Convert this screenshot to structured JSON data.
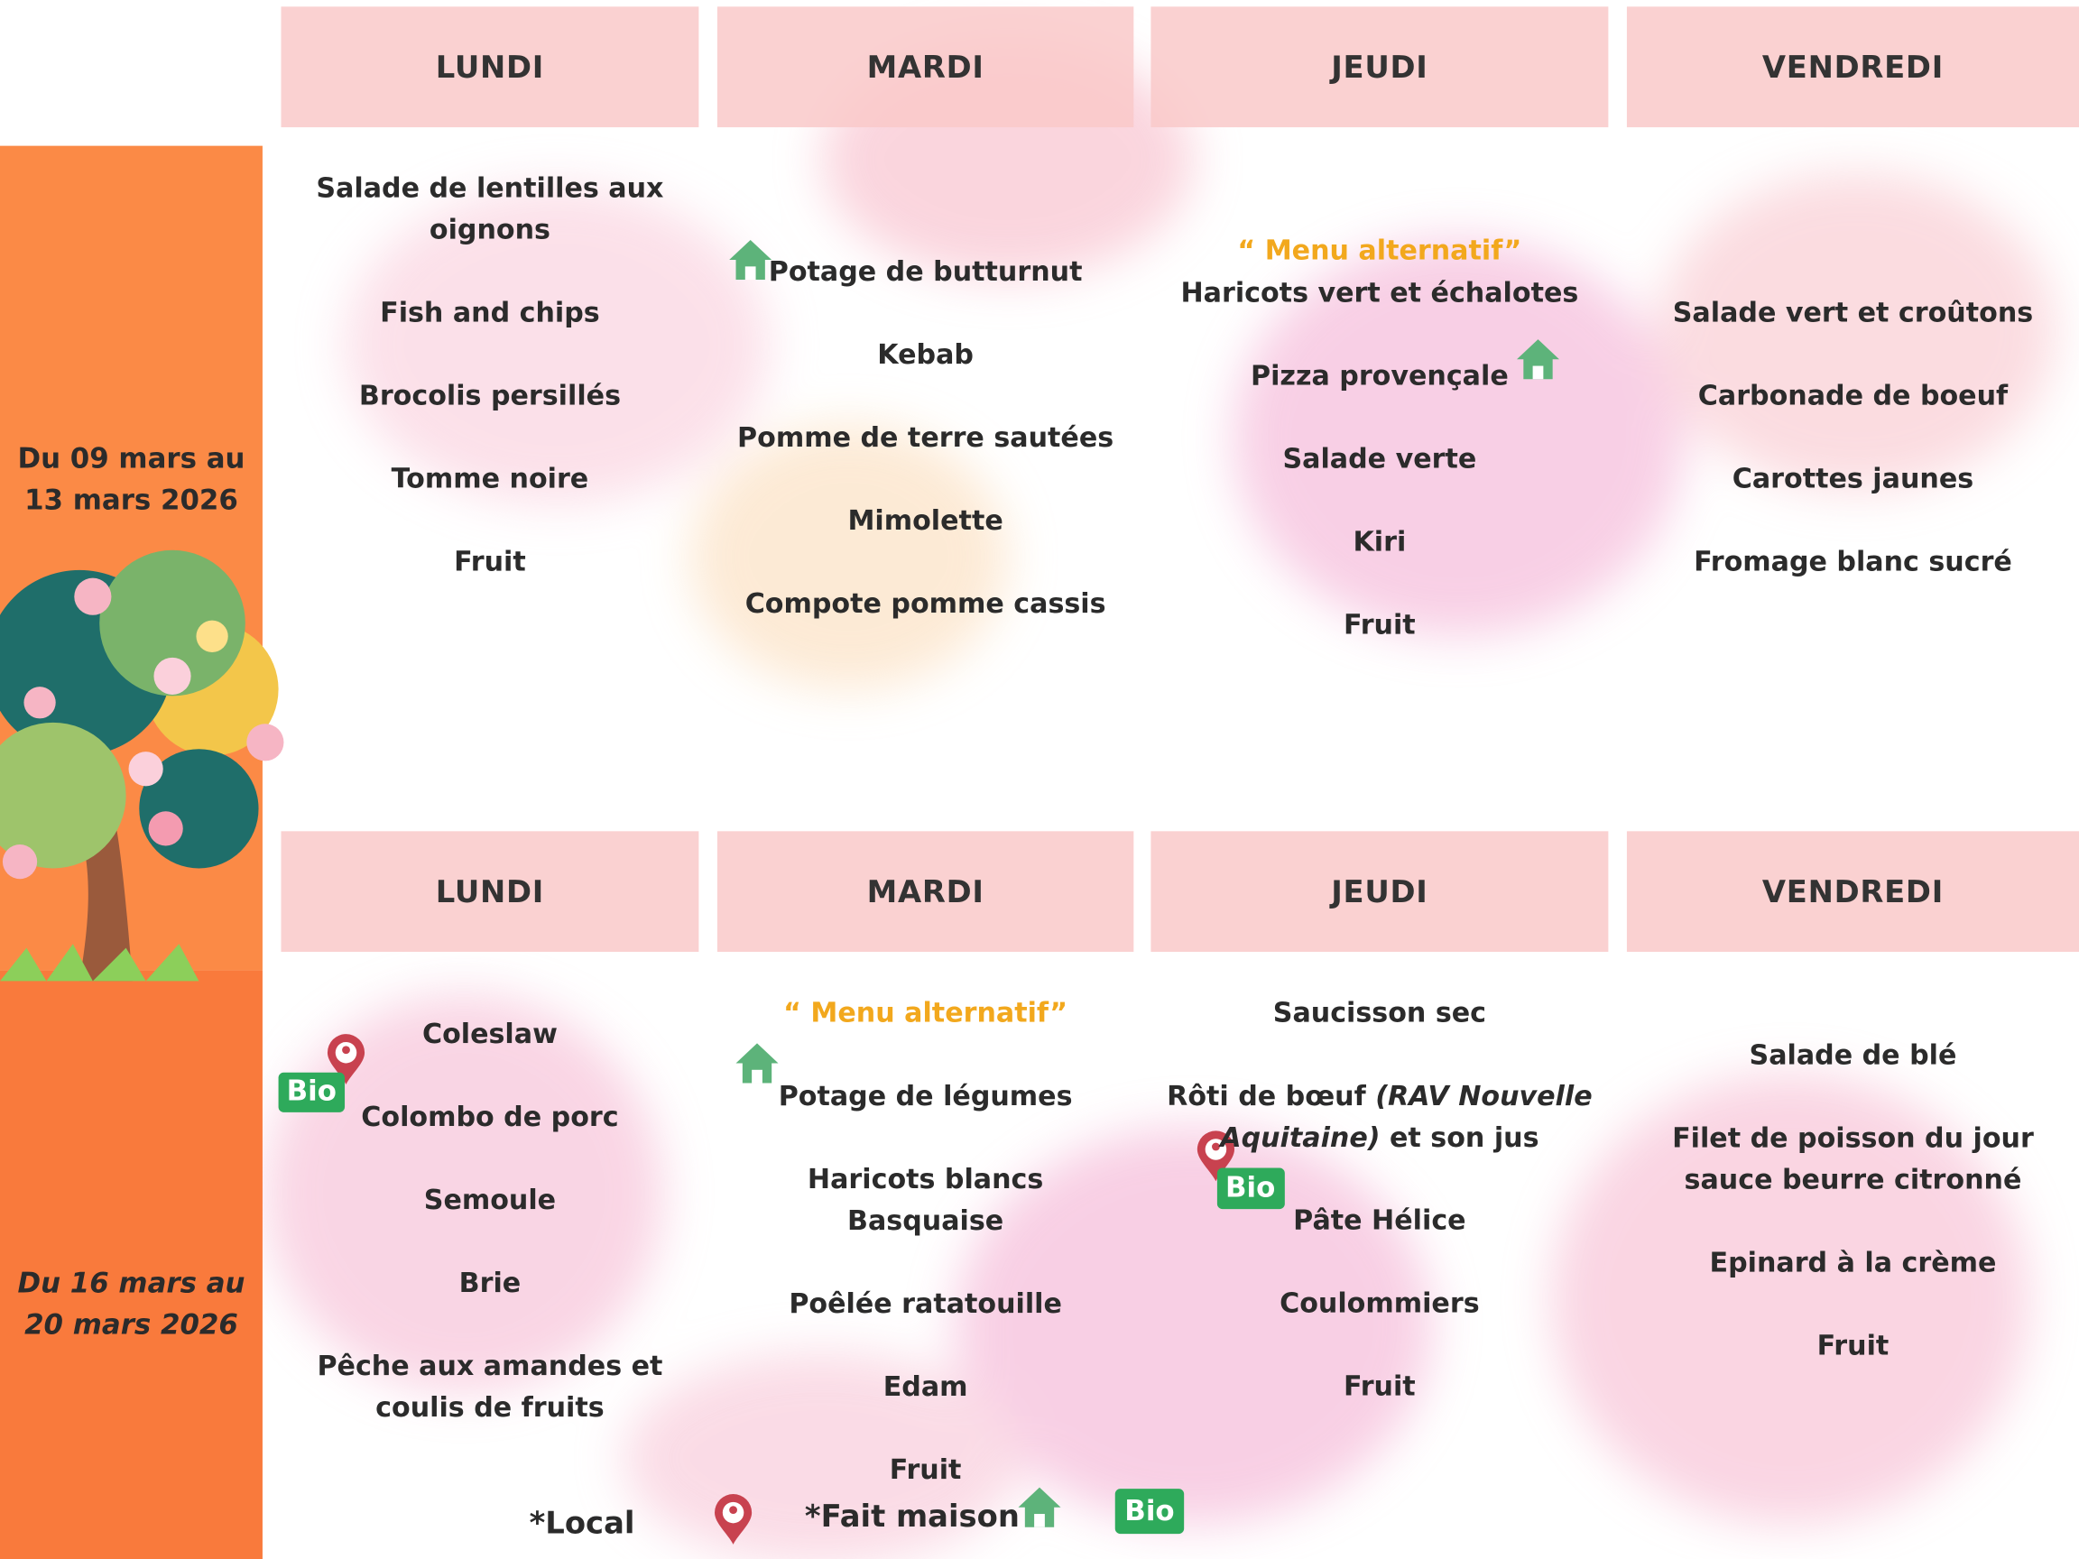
{
  "weeks": [
    {
      "dates": [
        "Du 09 mars au",
        "13 mars 2026"
      ],
      "days": [
        {
          "name": "LUNDI",
          "items": [
            [
              "Salade de lentilles aux",
              "oignons"
            ],
            [
              "Fish and chips"
            ],
            [
              "Brocolis persillés"
            ],
            [
              "Tomme noire"
            ],
            [
              "Fruit"
            ]
          ]
        },
        {
          "name": "MARDI",
          "items": [
            [
              "Potage de butturnut"
            ],
            [
              "Kebab"
            ],
            [
              "Pomme de terre sautées"
            ],
            [
              "Mimolette"
            ],
            [
              "Compote pomme cassis"
            ]
          ]
        },
        {
          "name": "JEUDI",
          "note": "“ Menu alternatif”",
          "items": [
            [
              "Haricots vert et échalotes"
            ],
            [
              "Pizza provençale"
            ],
            [
              "Salade verte"
            ],
            [
              "Kiri"
            ],
            [
              "Fruit"
            ]
          ]
        },
        {
          "name": "VENDREDI",
          "items": [
            [
              "Salade vert et croûtons"
            ],
            [
              "Carbonade de boeuf"
            ],
            [
              "Carottes jaunes"
            ],
            [
              "Fromage blanc sucré"
            ]
          ]
        }
      ]
    },
    {
      "dates": [
        "Du 16 mars au",
        "20 mars 2026"
      ],
      "days": [
        {
          "name": "LUNDI",
          "items": [
            [
              "Coleslaw"
            ],
            [
              "Colombo de porc"
            ],
            [
              "Semoule"
            ],
            [
              "Brie"
            ],
            [
              "Pêche aux amandes et",
              "coulis de fruits"
            ]
          ]
        },
        {
          "name": "MARDI",
          "note": "“ Menu alternatif”",
          "items": [
            [
              "Potage de légumes"
            ],
            [
              "Haricots blancs",
              "Basquaise"
            ],
            [
              "Poêlée ratatouille"
            ],
            [
              "Edam"
            ],
            [
              "Fruit"
            ]
          ]
        },
        {
          "name": "JEUDI",
          "items": [
            [
              "Saucisson sec"
            ],
            [
              [
                {
                  "text": "Rôti de bœuf "
                },
                {
                  "text": "(RAV Nouvelle",
                  "italic": true
                }
              ],
              [
                {
                  "text": "Aquitaine)",
                  "italic": true
                },
                {
                  "text": " et son jus"
                }
              ]
            ],
            [
              "Pâte Hélice"
            ],
            [
              "Coulommiers"
            ],
            [
              "Fruit"
            ]
          ]
        },
        {
          "name": "VENDREDI",
          "items": [
            [
              "Salade de blé"
            ],
            [
              "Filet de poisson du jour",
              "sauce beurre citronné"
            ],
            [
              "Epinard à la crème"
            ],
            [
              "Fruit"
            ]
          ]
        }
      ]
    }
  ],
  "badges": [
    "Bio",
    "Bio"
  ],
  "legend": {
    "local": "*Local",
    "maison": "*Fait maison",
    "bio": "Bio"
  }
}
